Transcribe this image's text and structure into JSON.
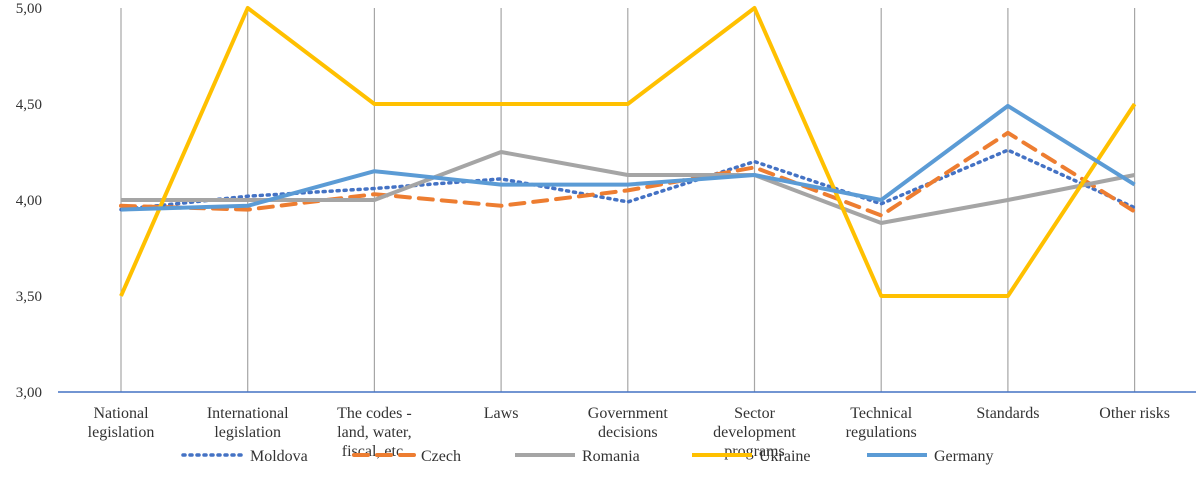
{
  "chart_data": {
    "type": "line",
    "title": "",
    "xlabel": "",
    "ylabel": "",
    "ylim": [
      3.0,
      5.0
    ],
    "yticks": [
      "3,00",
      "3,50",
      "4,00",
      "4,50",
      "5,00"
    ],
    "ytick_values": [
      3.0,
      3.5,
      4.0,
      4.5,
      5.0
    ],
    "grid": "vertical",
    "legend_position": "bottom",
    "categories": [
      [
        "National",
        "legislation"
      ],
      [
        "International",
        "legislation"
      ],
      [
        "The codes -",
        "land, water,",
        "fiscal, etc."
      ],
      [
        "Laws"
      ],
      [
        "Government",
        "decisions"
      ],
      [
        "Sector",
        "development",
        "programs"
      ],
      [
        "Technical",
        "regulations"
      ],
      [
        "Standards"
      ],
      [
        "Other risks"
      ]
    ],
    "series": [
      {
        "name": "Moldova",
        "color": "#4472C4",
        "style": "dotted",
        "values": [
          3.95,
          4.02,
          4.06,
          4.11,
          3.99,
          4.2,
          3.98,
          4.26,
          3.96
        ]
      },
      {
        "name": "Czech",
        "color": "#ED7D31",
        "style": "dashed",
        "values": [
          3.97,
          3.95,
          4.03,
          3.97,
          4.05,
          4.17,
          3.92,
          4.35,
          3.94
        ]
      },
      {
        "name": "Romania",
        "color": "#A5A5A5",
        "style": "solid",
        "values": [
          4.0,
          4.0,
          4.0,
          4.25,
          4.13,
          4.13,
          3.88,
          4.0,
          4.13
        ]
      },
      {
        "name": "Ukraine",
        "color": "#FFC000",
        "style": "solid",
        "values": [
          3.5,
          5.0,
          4.5,
          4.5,
          4.5,
          5.0,
          3.5,
          3.5,
          4.5
        ]
      },
      {
        "name": "Germany",
        "color": "#5B9BD5",
        "style": "solid",
        "values": [
          3.95,
          3.97,
          4.15,
          4.08,
          4.08,
          4.13,
          4.0,
          4.49,
          4.08
        ]
      }
    ]
  }
}
